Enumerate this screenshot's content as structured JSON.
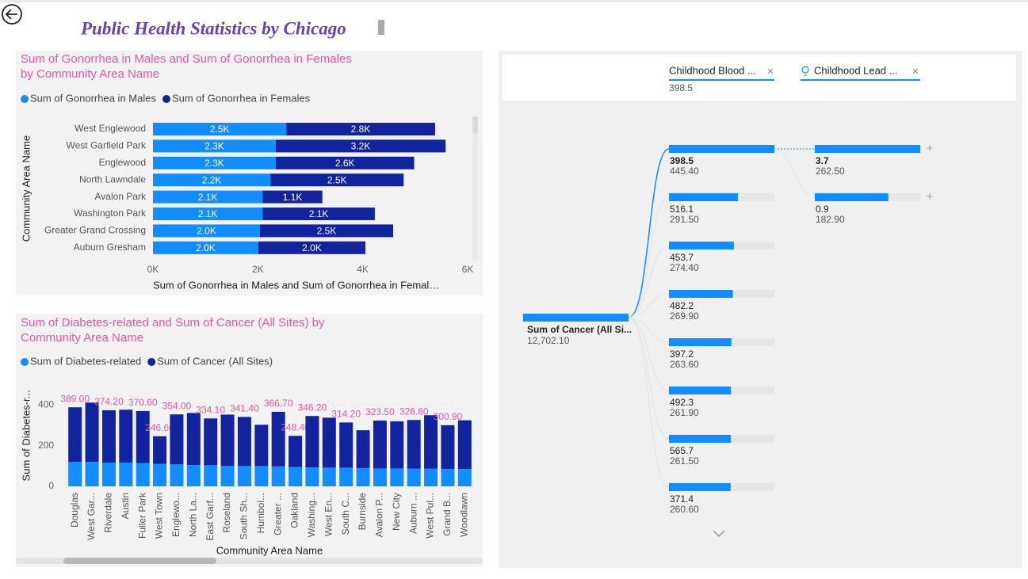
{
  "header": {
    "title": "Public Health Statistics by Chicago"
  },
  "chart_data": [
    {
      "type": "bar",
      "orientation": "horizontal",
      "stacked": true,
      "title": "Sum of Gonorrhea in Males and Sum of Gonorrhea in Females by Community Area Name",
      "x_label": "Sum of Gonorrhea in Males and Sum of Gonorrhea in Femal…",
      "y_label": "Community Area Name",
      "categories": [
        "West Englewood",
        "West Garfield Park",
        "Englewood",
        "North Lawndale",
        "Avalon Park",
        "Washington Park",
        "Greater Grand Crossing",
        "Auburn Gresham"
      ],
      "series": [
        {
          "name": "Sum of Gonorrhea in Males",
          "color": "#118dff",
          "values": [
            2540,
            2340,
            2340,
            2240,
            2090,
            2090,
            2040,
            2010
          ],
          "value_labels": [
            "2.5K",
            "2.3K",
            "2.3K",
            "2.2K",
            "2.1K",
            "2.1K",
            "2.0K",
            "2.0K"
          ]
        },
        {
          "name": "Sum of Gonorrhea in Females",
          "color": "#12239e",
          "values": [
            2840,
            3240,
            2640,
            2540,
            1140,
            2140,
            2540,
            2040
          ],
          "value_labels": [
            "2.8K",
            "3.2K",
            "2.6K",
            "2.5K",
            "1.1K",
            "2.1K",
            "2.5K",
            "2.0K"
          ]
        }
      ],
      "xlim": [
        0,
        6000
      ],
      "xticks": [
        {
          "value": 0,
          "label": "0K"
        },
        {
          "value": 2000,
          "label": "2K"
        },
        {
          "value": 4000,
          "label": "4K"
        },
        {
          "value": 6000,
          "label": "6K"
        }
      ],
      "grid": false,
      "legend": "top"
    },
    {
      "type": "bar",
      "orientation": "vertical",
      "stacked": true,
      "title": "Sum of Diabetes-related and Sum of Cancer (All Sites) by Community Area Name",
      "x_label": "Community Area Name",
      "y_label": "Sum of Diabetes-r...",
      "categories": [
        "Douglas",
        "West Gar...",
        "Riverdale",
        "Austin",
        "Fuller Park",
        "West Town",
        "Englewo...",
        "North La...",
        "East Garf...",
        "Roseland",
        "South Sh...",
        "Humbol...",
        "Greater ...",
        "Oakland",
        "Washing...",
        "West En...",
        "South C...",
        "Burnside",
        "Avalon P...",
        "New City",
        "Auburn ...",
        "West Pul...",
        "Grand B...",
        "Woodlawn"
      ],
      "series": [
        {
          "name": "Sum of Diabetes-related",
          "color": "#118dff",
          "values": [
            120,
            120,
            117,
            117,
            115,
            110,
            108,
            105,
            104,
            100,
            100,
            100,
            98,
            95,
            93,
            92,
            92,
            90,
            88,
            88,
            87,
            87,
            86,
            85
          ]
        },
        {
          "name": "Sum of Cancer (All Sites)",
          "color": "#12239e",
          "values": [
            269,
            292,
            257.2,
            260,
            255.6,
            136.6,
            246,
            256,
            230.1,
            253,
            241.4,
            203,
            268.7,
            153.4,
            253.2,
            246,
            222.2,
            186,
            235.5,
            232,
            239.6,
            263,
            214.9,
            240
          ]
        }
      ],
      "total_labels": [
        "389.00",
        null,
        "374.20",
        null,
        "370.60",
        "246.60",
        "354.00",
        null,
        "334.10",
        null,
        "341.40",
        null,
        "366.70",
        "248.40",
        "346.20",
        null,
        "314.20",
        null,
        "323.50",
        null,
        "326.60",
        null,
        "300.90",
        null
      ],
      "ylim": [
        0,
        460
      ],
      "yticks": [
        0,
        200,
        400
      ],
      "grid": true,
      "legend": "top"
    }
  ],
  "decomposition_tree": {
    "root": {
      "label": "Sum of Cancer (All Si...",
      "value": 12702.1,
      "value_label": "12,702.10"
    },
    "levels": [
      {
        "filter": "Childhood Blood ...",
        "selected": "398.5",
        "nodes": [
          {
            "label": "398.5",
            "value": 445.4,
            "value_label": "445.40"
          },
          {
            "label": "516.1",
            "value": 291.5,
            "value_label": "291.50"
          },
          {
            "label": "453.7",
            "value": 274.4,
            "value_label": "274.40"
          },
          {
            "label": "482.2",
            "value": 269.9,
            "value_label": "269.90"
          },
          {
            "label": "397.2",
            "value": 263.6,
            "value_label": "263.60"
          },
          {
            "label": "492.3",
            "value": 261.9,
            "value_label": "261.90"
          },
          {
            "label": "565.7",
            "value": 261.5,
            "value_label": "261.50"
          },
          {
            "label": "371.4",
            "value": 260.6,
            "value_label": "260.60"
          }
        ]
      },
      {
        "filter": "Childhood Lead ...",
        "nodes": [
          {
            "label": "3.7",
            "value": 262.5,
            "value_label": "262.50"
          },
          {
            "label": "0.9",
            "value": 182.9,
            "value_label": "182.90"
          }
        ]
      }
    ]
  }
}
